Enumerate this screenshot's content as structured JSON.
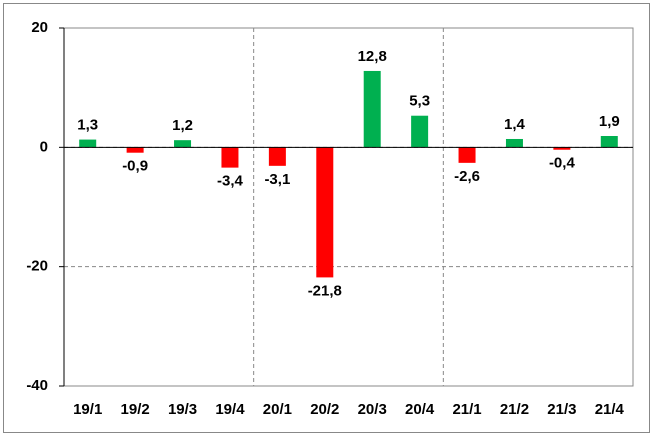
{
  "chart_data": {
    "type": "bar",
    "categories": [
      "19/1",
      "19/2",
      "19/3",
      "19/4",
      "20/1",
      "20/2",
      "20/3",
      "20/4",
      "21/1",
      "21/2",
      "21/3",
      "21/4"
    ],
    "values": [
      1.3,
      -0.9,
      1.2,
      -3.4,
      -3.1,
      -21.8,
      12.8,
      5.3,
      -2.6,
      1.4,
      -0.4,
      1.9
    ],
    "value_labels": [
      "1,3",
      "-0,9",
      "1,2",
      "-3,4",
      "-3,1",
      "-21,8",
      "12,8",
      "5,3",
      "-2,6",
      "1,4",
      "-0,4",
      "1,9"
    ],
    "positive_color": "#00b050",
    "negative_color": "#ff0000",
    "ylim": [
      -40,
      20
    ],
    "yticks": [
      -40,
      -20,
      0,
      20
    ],
    "grid": true
  }
}
